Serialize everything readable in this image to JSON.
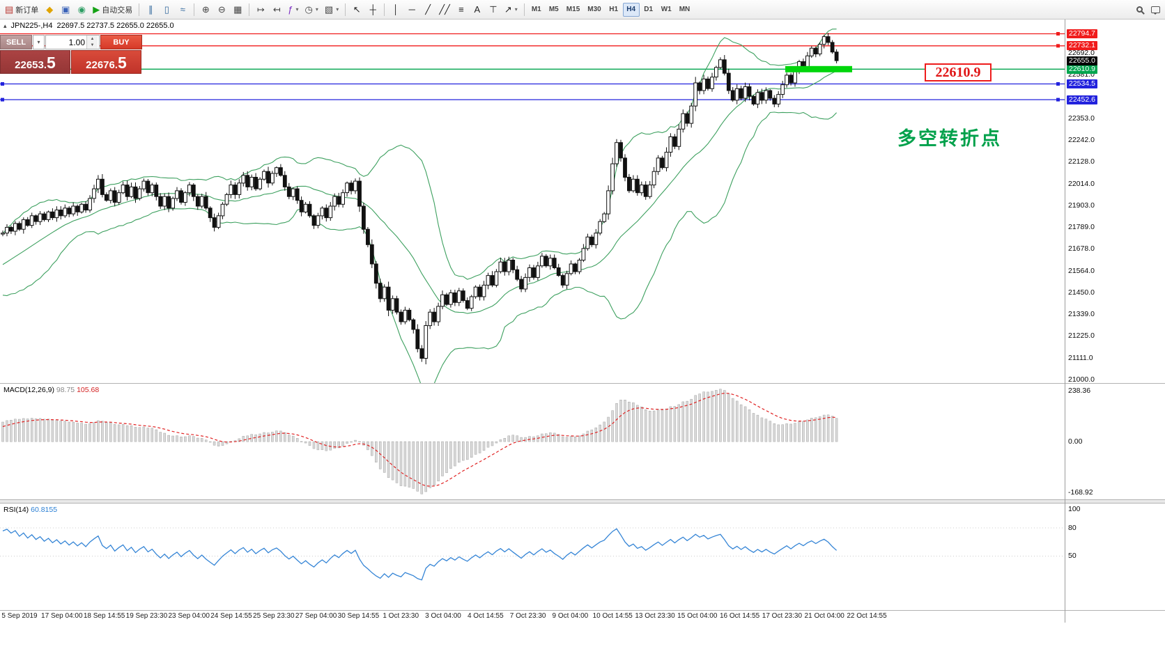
{
  "toolbar": {
    "active_timeframe": "H4",
    "groups": [
      {
        "name": "trading",
        "items": [
          {
            "name": "new-order-button",
            "icon": "▤",
            "icon_color": "#b8352f",
            "label": "新订单"
          },
          {
            "name": "market-watch-button",
            "icon": "◆",
            "icon_color": "#e0a400"
          },
          {
            "name": "data-window-button",
            "icon": "▣",
            "icon_color": "#3a62b8"
          },
          {
            "name": "navigator-button",
            "icon": "◉",
            "icon_color": "#2e9e64"
          },
          {
            "name": "auto-trading-button",
            "icon": "▶",
            "icon_color": "#15a215",
            "label": "自动交易"
          }
        ]
      },
      {
        "name": "chart-types",
        "items": [
          {
            "name": "bar-chart-button",
            "icon": "∥",
            "icon_color": "#356a9e"
          },
          {
            "name": "candlestick-chart-button",
            "icon": "▯",
            "icon_color": "#356a9e"
          },
          {
            "name": "line-chart-button",
            "icon": "≈",
            "icon_color": "#356a9e"
          }
        ]
      },
      {
        "name": "zoom",
        "items": [
          {
            "name": "zoom-in-button",
            "icon": "⊕",
            "icon_color": "#444444"
          },
          {
            "name": "zoom-out-button",
            "icon": "⊖",
            "icon_color": "#444444"
          },
          {
            "name": "tile-windows-button",
            "icon": "▦",
            "icon_color": "#444444"
          }
        ]
      },
      {
        "name": "chart-tools",
        "items": [
          {
            "name": "auto-scroll-button",
            "icon": "↦",
            "icon_color": "#444444"
          },
          {
            "name": "chart-shift-button",
            "icon": "↤",
            "icon_color": "#444444"
          },
          {
            "name": "indicators-button",
            "icon": "ƒ",
            "icon_color": "#7a2bc2",
            "caret": true
          },
          {
            "name": "periods-button",
            "icon": "◷",
            "icon_color": "#444444",
            "caret": true
          },
          {
            "name": "templates-button",
            "icon": "▧",
            "icon_color": "#444444",
            "caret": true
          }
        ]
      },
      {
        "name": "cursor-tools",
        "items": [
          {
            "name": "cursor-button",
            "icon": "↖",
            "icon_color": "#222222"
          },
          {
            "name": "crosshair-button",
            "icon": "┼",
            "icon_color": "#222222"
          }
        ]
      },
      {
        "name": "draw-tools",
        "items": [
          {
            "name": "vertical-line-button",
            "icon": "│",
            "icon_color": "#222222"
          },
          {
            "name": "horizontal-line-button",
            "icon": "─",
            "icon_color": "#222222"
          },
          {
            "name": "trendline-button",
            "icon": "╱",
            "icon_color": "#222222"
          },
          {
            "name": "channel-button",
            "icon": "╱╱",
            "icon_color": "#222222"
          },
          {
            "name": "fibonacci-button",
            "icon": "≡",
            "icon_color": "#222222"
          },
          {
            "name": "text-button",
            "icon": "A",
            "icon_color": "#222222"
          },
          {
            "name": "text-label-button",
            "icon": "⊤",
            "icon_color": "#222222"
          },
          {
            "name": "arrows-button",
            "icon": "↗",
            "icon_color": "#222222",
            "caret": true
          }
        ]
      },
      {
        "name": "timeframes",
        "type": "timeframes",
        "items": [
          "M1",
          "M5",
          "M15",
          "M30",
          "H1",
          "H4",
          "D1",
          "W1",
          "MN"
        ]
      },
      {
        "name": "right",
        "align": "right",
        "items": [
          {
            "name": "search-button",
            "shape": "magnifier"
          },
          {
            "name": "chat-button",
            "shape": "bubble"
          }
        ]
      }
    ]
  },
  "chart": {
    "symbol_period": "JPN225-,H4",
    "ohlc_values": "22697.5 22737.5 22655.0 22655.0"
  },
  "one_click": {
    "sell_label": "SELL",
    "buy_label": "BUY",
    "volume": "1.00",
    "sell_price_main": "22653.",
    "sell_price_frac": "5",
    "buy_price_main": "22676.",
    "buy_price_frac": "5"
  },
  "indicators": {
    "macd": {
      "name": "MACD(12,26,9)",
      "value_main": "98.75",
      "value_signal": "105.68"
    },
    "rsi": {
      "name": "RSI(14)",
      "value": "60.8155"
    }
  },
  "annotations": {
    "price_box": "22610.9",
    "turning_point": "多空转折点"
  },
  "chart_data": {
    "type": "candlestick",
    "symbol": "JPN225-",
    "period": "H4",
    "y_axis": {
      "top_price": 22794.7,
      "bottom_price": 21000
    },
    "current_price": "22655.0",
    "price_ticks": [
      "22692.0",
      "22581.0",
      "22353.0",
      "22242.0",
      "22128.0",
      "22014.0",
      "21903.0",
      "21789.0",
      "21678.0",
      "21564.0",
      "21450.0",
      "21339.0",
      "21225.0",
      "21111.0",
      "21000.0"
    ],
    "horizontal_lines": [
      {
        "price": 22794.7,
        "color": "#f01c1c",
        "handles": "right"
      },
      {
        "price": 22732.1,
        "color": "#f01c1c",
        "handles": "right"
      },
      {
        "price": 22610.9,
        "color": "#00a54e",
        "handles": "none"
      },
      {
        "price": 22534.5,
        "color": "#2222dd",
        "handles": "both"
      },
      {
        "price": 22452.6,
        "color": "#2222dd",
        "handles": "both"
      }
    ],
    "highlight_bar": {
      "price": 22610.9
    },
    "bollinger": {
      "period": 20,
      "deviation": 2
    },
    "macd": {
      "fast": 12,
      "slow": 26,
      "signal": 9,
      "scale_labels": [
        "238.36",
        "0.00",
        "-168.92"
      ]
    },
    "rsi": {
      "period": 14,
      "levels": [
        100,
        80,
        50
      ]
    },
    "date_labels": [
      "5 Sep 2019",
      "17 Sep 04:00",
      "18 Sep 14:55",
      "19 Sep 23:30",
      "23 Sep 04:00",
      "24 Sep 14:55",
      "25 Sep 23:30",
      "27 Sep 04:00",
      "30 Sep 14:55",
      "1 Oct 23:30",
      "3 Oct 04:00",
      "4 Oct 14:55",
      "7 Oct 23:30",
      "9 Oct 04:00",
      "10 Oct 14:55",
      "13 Oct 23:30",
      "15 Oct 04:00",
      "16 Oct 14:55",
      "17 Oct 23:30",
      "21 Oct 04:00",
      "22 Oct 14:55"
    ],
    "warmup_closes": [
      21400,
      21430,
      21415,
      21450,
      21435,
      21470,
      21450,
      21485,
      21465,
      21500,
      21480,
      21515,
      21495,
      21530,
      21510,
      21545,
      21525,
      21560,
      21540,
      21575,
      21555,
      21590,
      21570,
      21610,
      21590,
      21640,
      21660,
      21690,
      21720,
      21755
    ],
    "closes": [
      21760,
      21790,
      21770,
      21810,
      21780,
      21830,
      21800,
      21850,
      21820,
      21860,
      21830,
      21870,
      21840,
      21880,
      21850,
      21890,
      21860,
      21900,
      21870,
      21910,
      21880,
      21940,
      21990,
      22040,
      21960,
      21930,
      21980,
      21920,
      21970,
      22010,
      21950,
      22000,
      21940,
      21990,
      22030,
      21970,
      22010,
      21950,
      21900,
      21950,
      21890,
      21940,
      21980,
      21920,
      21970,
      22010,
      21950,
      21900,
      21950,
      21890,
      21840,
      21790,
      21850,
      21910,
      21960,
      22010,
      21960,
      22020,
      22060,
      22000,
      22050,
      21990,
      22040,
      22080,
      22020,
      22070,
      22100,
      22060,
      22000,
      21950,
      21990,
      21930,
      21870,
      21910,
      21850,
      21800,
      21850,
      21890,
      21840,
      21900,
      21950,
      21910,
      21970,
      22020,
      21980,
      22030,
      21900,
      21780,
      21700,
      21600,
      21500,
      21420,
      21480,
      21360,
      21420,
      21350,
      21300,
      21360,
      21310,
      21260,
      21160,
      21110,
      21280,
      21350,
      21300,
      21380,
      21440,
      21390,
      21450,
      21400,
      21460,
      21410,
      21370,
      21430,
      21480,
      21430,
      21490,
      21540,
      21490,
      21560,
      21610,
      21560,
      21620,
      21570,
      21520,
      21470,
      21530,
      21580,
      21530,
      21590,
      21640,
      21590,
      21630,
      21580,
      21540,
      21490,
      21550,
      21600,
      21560,
      21620,
      21680,
      21740,
      21700,
      21760,
      21820,
      21860,
      21980,
      22120,
      22230,
      22150,
      22050,
      21980,
      22040,
      21970,
      22010,
      21950,
      22010,
      22080,
      22150,
      22100,
      22180,
      22260,
      22210,
      22300,
      22380,
      22330,
      22420,
      22540,
      22500,
      22560,
      22510,
      22570,
      22620,
      22660,
      22590,
      22500,
      22450,
      22510,
      22460,
      22520,
      22470,
      22430,
      22490,
      22450,
      22500,
      22460,
      22430,
      22480,
      22530,
      22580,
      22540,
      22600,
      22650,
      22620,
      22680,
      22720,
      22690,
      22740,
      22780,
      22750,
      22700,
      22655
    ]
  }
}
